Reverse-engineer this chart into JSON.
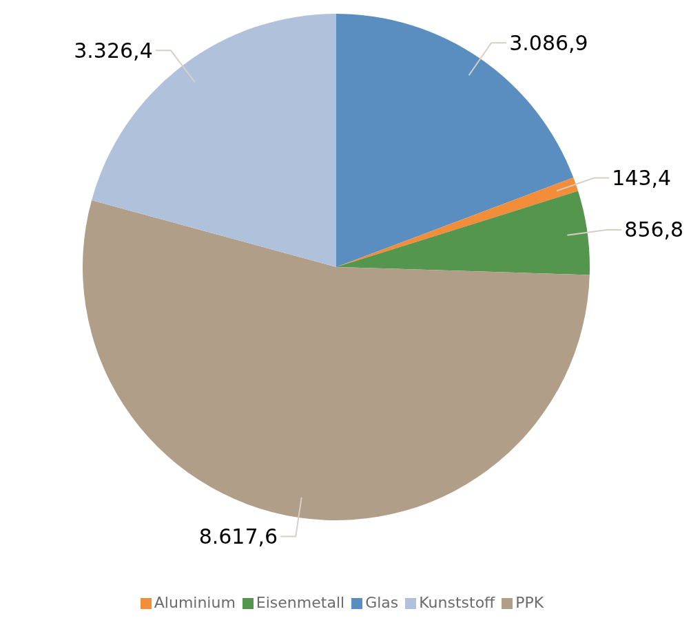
{
  "chart_data": {
    "type": "pie",
    "categories": [
      "Glas",
      "Aluminium",
      "Eisenmetall",
      "PPK",
      "Kunststoff"
    ],
    "values": [
      3086.9,
      143.4,
      856.8,
      8617.6,
      3326.4
    ],
    "value_labels": [
      "3.086,9",
      "143,4",
      "856,8",
      "8.617,6",
      "3.326,4"
    ],
    "colors": [
      "#5b8ec0",
      "#f28e3a",
      "#55964e",
      "#b09e89",
      "#b0c1dc"
    ],
    "legend": "bottom"
  }
}
